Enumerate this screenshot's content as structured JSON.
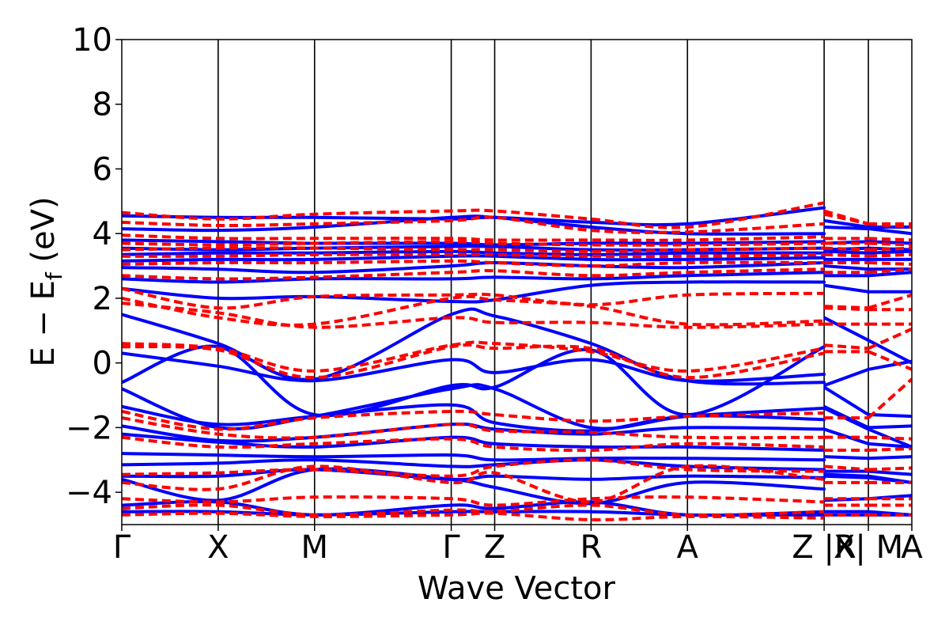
{
  "chart_data": {
    "type": "line",
    "title": "",
    "xlabel": "Wave Vector",
    "ylabel": "E − E",
    "ylabel_sub": "f",
    "ylabel_unit": " (eV)",
    "ylim": [
      -5,
      10
    ],
    "yticks": [
      -4,
      -2,
      0,
      2,
      4,
      6,
      8,
      10
    ],
    "ytick_labels": [
      "−4",
      "−2",
      "0",
      "2",
      "4",
      "6",
      "8",
      "10"
    ],
    "xlim": [
      0,
      1
    ],
    "kpoints": [
      {
        "label": "Γ",
        "x": 0.0
      },
      {
        "label": "X",
        "x": 0.122
      },
      {
        "label": "M",
        "x": 0.244
      },
      {
        "label": "Γ",
        "x": 0.417
      },
      {
        "label": "Z",
        "x": 0.472
      },
      {
        "label": "R",
        "x": 0.594
      },
      {
        "label": "A",
        "x": 0.716
      },
      {
        "label": "Z |R",
        "x": 0.889
      },
      {
        "label": "X| M",
        "x": 0.945
      },
      {
        "label": "A",
        "x": 1.0
      }
    ],
    "segment_breaks": [
      0.889,
      0.945
    ],
    "colors": {
      "series_a": "#0000ff",
      "series_b": "#ff0000"
    },
    "series": [
      {
        "style": "solid",
        "color": "#0000ff",
        "bands": [
          [
            4.55,
            4.5,
            4.5,
            4.45,
            4.5,
            4.35,
            4.3,
            4.8,
            4.4,
            4.2,
            4.2
          ],
          [
            4.15,
            4.1,
            4.2,
            4.5,
            4.5,
            4.2,
            4.0,
            4.0,
            4.2,
            4.15,
            4.0
          ],
          [
            3.8,
            3.75,
            3.7,
            3.7,
            3.65,
            3.7,
            3.7,
            3.75,
            3.7,
            3.75,
            3.7
          ],
          [
            3.55,
            3.5,
            3.55,
            3.6,
            3.6,
            3.5,
            3.5,
            3.55,
            3.5,
            3.55,
            3.5
          ],
          [
            3.35,
            3.4,
            3.4,
            3.45,
            3.4,
            3.35,
            3.4,
            3.4,
            3.45,
            3.4,
            3.45
          ],
          [
            3.15,
            3.2,
            3.2,
            3.3,
            3.3,
            3.2,
            3.2,
            3.25,
            3.2,
            3.2,
            3.2
          ],
          [
            2.95,
            2.9,
            2.8,
            3.0,
            3.1,
            3.0,
            2.95,
            3.1,
            3.0,
            2.9,
            2.9
          ],
          [
            2.6,
            2.5,
            2.6,
            2.6,
            2.65,
            2.6,
            2.7,
            2.8,
            2.7,
            2.7,
            2.8
          ],
          [
            2.3,
            2.0,
            2.05,
            1.9,
            1.95,
            2.4,
            2.5,
            2.5,
            2.4,
            2.2,
            2.2
          ],
          [
            1.5,
            0.6,
            -0.5,
            1.5,
            1.45,
            0.6,
            -0.55,
            -0.6,
            1.4,
            0.7,
            0.0
          ],
          [
            0.3,
            -0.1,
            -0.55,
            0.1,
            -0.3,
            0.1,
            -0.55,
            -0.35,
            -0.7,
            -0.2,
            0.05
          ],
          [
            -0.6,
            0.5,
            -1.6,
            -0.7,
            -0.75,
            0.4,
            -1.6,
            0.5,
            -0.75,
            -1.6,
            -1.65
          ],
          [
            -0.8,
            -2.0,
            -1.65,
            -0.8,
            -0.8,
            -2.0,
            -1.65,
            -1.4,
            -1.35,
            -2.0,
            -1.95
          ],
          [
            -1.35,
            -1.9,
            -1.65,
            -1.3,
            -1.85,
            -2.1,
            -1.65,
            -1.75,
            -1.4,
            -2.05,
            -2.6
          ],
          [
            -1.95,
            -2.4,
            -2.3,
            -1.9,
            -2.05,
            -2.2,
            -2.0,
            -2.05,
            -2.05,
            -2.5,
            -2.6
          ],
          [
            -2.2,
            -2.45,
            -2.6,
            -2.3,
            -2.5,
            -2.6,
            -2.6,
            -2.7,
            -2.9,
            -2.95,
            -2.9
          ],
          [
            -2.8,
            -2.85,
            -2.9,
            -2.85,
            -3.0,
            -2.95,
            -2.95,
            -3.0,
            -3.35,
            -3.35,
            -3.45
          ],
          [
            -3.15,
            -3.1,
            -3.0,
            -3.2,
            -3.15,
            -3.0,
            -3.2,
            -3.3,
            -3.45,
            -3.5,
            -3.7
          ],
          [
            -3.5,
            -3.5,
            -3.3,
            -3.6,
            -3.5,
            -3.6,
            -3.5,
            -3.55,
            -3.5,
            -3.55,
            -3.7
          ],
          [
            -3.6,
            -4.25,
            -3.3,
            -3.6,
            -3.85,
            -4.35,
            -3.7,
            -3.9,
            -4.25,
            -4.2,
            -4.1
          ],
          [
            -4.4,
            -4.3,
            -4.7,
            -4.4,
            -4.5,
            -4.3,
            -4.7,
            -4.6,
            -4.6,
            -4.6,
            -4.7
          ],
          [
            -4.6,
            -4.6,
            -4.7,
            -4.6,
            -4.6,
            -4.6,
            -4.7,
            -4.7,
            -4.7,
            -4.7,
            -4.7
          ]
        ]
      },
      {
        "style": "dashed",
        "color": "#ff0000",
        "bands": [
          [
            4.65,
            4.45,
            4.6,
            4.7,
            4.7,
            4.45,
            4.2,
            4.95,
            4.7,
            4.3,
            4.2
          ],
          [
            4.35,
            4.25,
            4.3,
            4.4,
            4.5,
            4.1,
            4.05,
            4.3,
            4.6,
            4.3,
            4.3
          ],
          [
            3.95,
            3.85,
            3.85,
            3.85,
            3.8,
            3.8,
            3.8,
            3.9,
            3.85,
            3.85,
            3.8
          ],
          [
            3.7,
            3.65,
            3.7,
            3.75,
            3.7,
            3.65,
            3.65,
            3.7,
            3.7,
            3.7,
            3.65
          ],
          [
            3.5,
            3.55,
            3.55,
            3.5,
            3.5,
            3.45,
            3.5,
            3.55,
            3.55,
            3.5,
            3.55
          ],
          [
            3.3,
            3.3,
            3.35,
            3.35,
            3.35,
            3.3,
            3.3,
            3.35,
            3.35,
            3.3,
            3.35
          ],
          [
            3.05,
            3.1,
            3.1,
            3.15,
            3.1,
            3.0,
            3.1,
            3.1,
            3.1,
            3.1,
            3.05
          ],
          [
            2.7,
            2.6,
            2.65,
            2.8,
            2.85,
            2.7,
            2.8,
            2.9,
            2.8,
            2.8,
            2.9
          ],
          [
            2.3,
            1.7,
            2.05,
            2.1,
            2.1,
            1.8,
            2.1,
            2.15,
            1.75,
            1.7,
            2.1
          ],
          [
            2.0,
            1.4,
            1.2,
            2.0,
            1.95,
            1.75,
            1.2,
            1.3,
            1.7,
            1.65,
            1.65
          ],
          [
            1.85,
            1.55,
            1.1,
            1.4,
            1.25,
            1.25,
            1.1,
            1.2,
            1.2,
            1.2,
            1.2
          ],
          [
            0.6,
            0.45,
            -0.25,
            0.55,
            0.6,
            0.35,
            -0.25,
            0.45,
            0.55,
            0.45,
            1.05
          ],
          [
            0.5,
            0.4,
            -0.45,
            0.5,
            0.45,
            0.45,
            -0.45,
            0.3,
            0.35,
            0.35,
            -0.2
          ],
          [
            -1.5,
            -2.05,
            -1.7,
            -1.5,
            -1.6,
            -1.8,
            -1.65,
            -1.55,
            -1.7,
            -1.7,
            -0.5
          ],
          [
            -1.7,
            -2.2,
            -2.3,
            -1.9,
            -2.1,
            -2.15,
            -2.3,
            -2.3,
            -2.3,
            -2.3,
            -2.35
          ],
          [
            -2.3,
            -2.6,
            -2.5,
            -2.35,
            -2.6,
            -2.7,
            -2.5,
            -2.6,
            -2.7,
            -2.7,
            -2.65
          ],
          [
            -3.45,
            -3.4,
            -3.3,
            -3.5,
            -3.2,
            -3.0,
            -3.3,
            -3.35,
            -3.2,
            -3.3,
            -3.25
          ],
          [
            -3.7,
            -3.9,
            -3.2,
            -3.7,
            -3.4,
            -4.3,
            -3.2,
            -3.6,
            -3.7,
            -3.7,
            -3.7
          ],
          [
            -4.2,
            -4.3,
            -4.15,
            -4.2,
            -4.4,
            -4.2,
            -4.15,
            -4.3,
            -4.2,
            -4.2,
            -4.2
          ],
          [
            -4.5,
            -4.4,
            -4.7,
            -4.55,
            -4.6,
            -4.4,
            -4.7,
            -4.6,
            -4.4,
            -4.4,
            -4.4
          ],
          [
            -4.7,
            -4.65,
            -4.75,
            -4.7,
            -4.65,
            -4.85,
            -4.75,
            -4.8,
            -4.7,
            -4.7,
            -4.7
          ]
        ]
      }
    ]
  }
}
